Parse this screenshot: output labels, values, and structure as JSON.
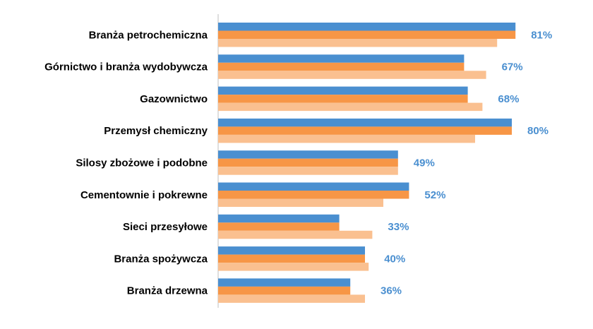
{
  "chart_data": {
    "type": "bar",
    "orientation": "horizontal",
    "categories": [
      "Branża petrochemiczna",
      "Górnictwo i branża wydobywcza",
      "Gazownictwo",
      "Przemysł chemiczny",
      "Silosy zbożowe i podobne",
      "Cementownie i pokrewne",
      "Sieci przesyłowe",
      "Branża spożywcza",
      "Branża drzewna"
    ],
    "series": [
      {
        "values": [
          81,
          67,
          68,
          80,
          49,
          52,
          33,
          40,
          36
        ],
        "color": "#4A8FD0"
      },
      {
        "values": [
          81,
          67,
          68,
          80,
          49,
          52,
          33,
          40,
          36
        ],
        "color": "#F79646"
      },
      {
        "values": [
          76,
          73,
          72,
          70,
          49,
          45,
          42,
          41,
          40
        ],
        "color": "#FAC090"
      }
    ],
    "data_labels": [
      "81%",
      "67%",
      "68%",
      "80%",
      "49%",
      "52%",
      "33%",
      "40%",
      "36%"
    ],
    "data_label_color": "#4A8FD0",
    "xlim": [
      0,
      100
    ],
    "grid": false,
    "legend": "none",
    "title": "",
    "xlabel": "",
    "ylabel": ""
  }
}
